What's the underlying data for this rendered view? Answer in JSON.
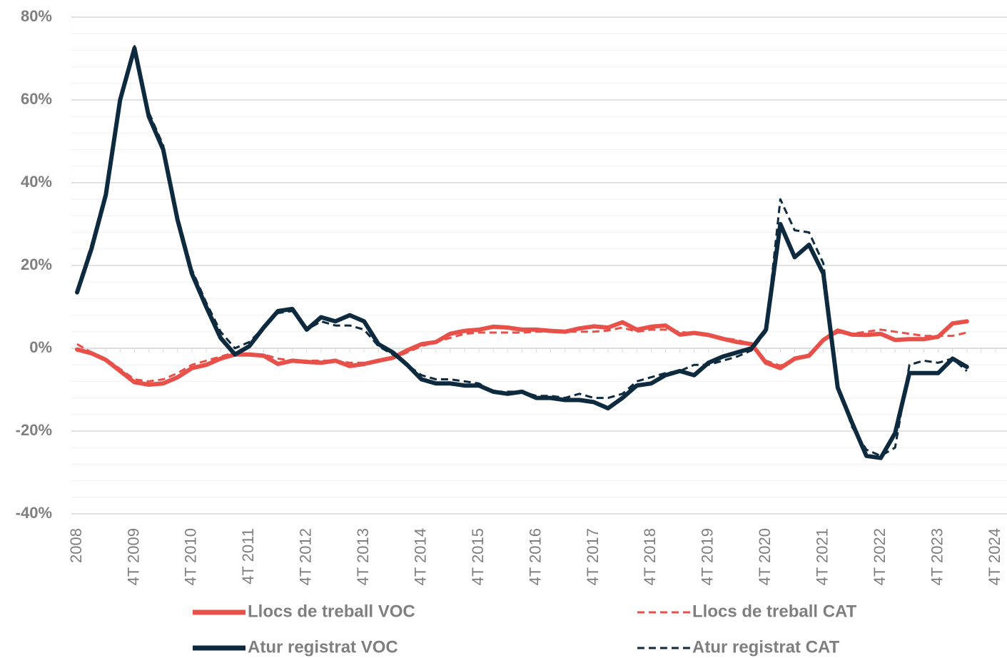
{
  "chart_data": {
    "type": "line",
    "categories": [
      "2008",
      null,
      null,
      null,
      "4T 2009",
      null,
      null,
      null,
      "4T 2010",
      null,
      null,
      null,
      "4T 2011",
      null,
      null,
      null,
      "4T 2012",
      null,
      null,
      null,
      "4T 2013",
      null,
      null,
      null,
      "4T 2014",
      null,
      null,
      null,
      "4T 2015",
      null,
      null,
      null,
      "4T 2016",
      null,
      null,
      null,
      "4T 2017",
      null,
      null,
      null,
      "4T 2018",
      null,
      null,
      null,
      "4T 2019",
      null,
      null,
      null,
      "4T 2020",
      null,
      null,
      null,
      "4T 2021",
      null,
      null,
      null,
      "4T 2022",
      null,
      null,
      null,
      "4T 2023",
      null,
      null,
      null,
      "4T 2024"
    ],
    "ylim": [
      -40,
      80
    ],
    "yticks": [
      {
        "value": -40,
        "label": "-40%"
      },
      {
        "value": -20,
        "label": "-20%"
      },
      {
        "value": 0,
        "label": "0%"
      },
      {
        "value": 20,
        "label": "20%"
      },
      {
        "value": 40,
        "label": "40%"
      },
      {
        "value": 60,
        "label": "60%"
      },
      {
        "value": 80,
        "label": "80%"
      }
    ],
    "minor_yticks": [
      -36,
      -32,
      -28,
      -24,
      -16,
      -12,
      -8,
      -4,
      4,
      8,
      12,
      16,
      24,
      28,
      32,
      36,
      44,
      48,
      52,
      56,
      64,
      68,
      72,
      76
    ],
    "grid": true,
    "legend": "bottom",
    "series": [
      {
        "name": "Llocs de treball VOC",
        "color": "#e8514a",
        "dashed": false,
        "values": [
          -0.3,
          -1.2,
          -2.8,
          -5.5,
          -8.2,
          -8.8,
          -8.5,
          -7,
          -4.8,
          -4,
          -2.5,
          -1.5,
          -1.5,
          -1.8,
          -3.8,
          -3,
          -3.3,
          -3.5,
          -3,
          -4.3,
          -3.8,
          -3,
          -2.3,
          -0.5,
          1,
          1.5,
          3.5,
          4.2,
          4.5,
          5.2,
          5,
          4.5,
          4.5,
          4.2,
          4,
          4.8,
          5.3,
          5,
          6.3,
          4.5,
          5.2,
          5.5,
          3.3,
          3.7,
          3.2,
          2.3,
          1.5,
          1,
          -3.5,
          -4.8,
          -2.5,
          -1.8,
          2,
          4.3,
          3.3,
          3.2,
          3.5,
          2,
          2.2,
          2.2,
          2.8,
          6,
          6.5,
          null,
          null
        ]
      },
      {
        "name": "Llocs de treball CAT",
        "color": "#e8514a",
        "dashed": true,
        "values": [
          1,
          -1,
          -2.5,
          -5,
          -7.5,
          -8,
          -7.5,
          -6,
          -4,
          -3,
          -2,
          -1,
          -1.5,
          -1.5,
          -2.5,
          -3,
          -3,
          -3,
          -3,
          -3.5,
          -3.5,
          -3,
          -2.5,
          -1,
          0.5,
          1.5,
          2.5,
          3.5,
          3.8,
          3.8,
          3.8,
          3.8,
          4,
          4,
          4,
          4,
          4,
          4.3,
          5,
          4,
          4.5,
          4.5,
          4,
          3.5,
          3,
          2.5,
          2,
          1,
          -3,
          -4.2,
          -2.5,
          -1.5,
          2,
          3.8,
          3.5,
          4,
          4.5,
          4,
          3.5,
          3,
          3,
          3,
          3.8,
          null,
          null
        ]
      },
      {
        "name": "Atur registrat VOC",
        "color": "#0d2a3f",
        "dashed": false,
        "values": [
          13.5,
          24,
          37,
          60,
          72.5,
          56,
          48,
          31,
          18,
          10,
          2.5,
          -1.5,
          0.5,
          5,
          9,
          9.5,
          4.5,
          7.5,
          6.5,
          8,
          6.5,
          1,
          -1,
          -4,
          -7.5,
          -8.5,
          -8.5,
          -9,
          -9,
          -10.5,
          -11,
          -10.5,
          -12,
          -12,
          -12.5,
          -12.5,
          -13,
          -14.5,
          -12,
          -9,
          -8.5,
          -6.5,
          -5.5,
          -6.5,
          -3.5,
          -2,
          -1,
          0,
          4.5,
          30,
          22,
          25,
          18,
          -9.5,
          -18,
          -26,
          -26.5,
          -20.5,
          -6,
          -6,
          -6,
          -2.5,
          -4.5,
          null,
          null
        ]
      },
      {
        "name": "Atur registrat CAT",
        "color": "#0d2a3f",
        "dashed": true,
        "values": [
          14,
          25,
          38,
          60,
          73,
          57,
          49,
          32,
          19,
          11,
          4,
          0,
          1.5,
          5,
          8.5,
          9,
          4.5,
          6.5,
          5.5,
          5.5,
          4.5,
          0.5,
          -1.5,
          -4,
          -6.5,
          -7.5,
          -7.5,
          -8,
          -8.5,
          -10.5,
          -10.5,
          -10.5,
          -11.5,
          -11.5,
          -12,
          -11,
          -12,
          -12,
          -11,
          -8,
          -7,
          -6,
          -5.5,
          -4,
          -4,
          -3,
          -2,
          -0.5,
          4,
          36,
          28.5,
          28,
          20.5,
          -9,
          -19,
          -24.5,
          -26,
          -24,
          -4,
          -3,
          -3.5,
          -2.5,
          -5.5,
          null,
          null
        ]
      }
    ]
  }
}
